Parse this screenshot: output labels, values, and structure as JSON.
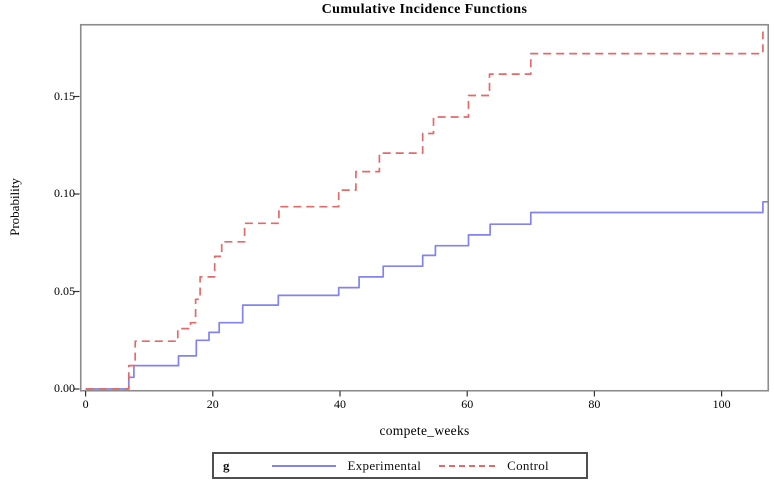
{
  "title": "Cumulative Incidence Functions",
  "axes": {
    "xlabel": "compete_weeks",
    "ylabel": "Probability",
    "x_tick_labels": [
      "0",
      "20",
      "40",
      "60",
      "80",
      "100"
    ],
    "y_tick_labels": [
      "0.00",
      "0.05",
      "0.10",
      "0.15"
    ]
  },
  "legend": {
    "group_label": "g",
    "entries": [
      {
        "label": "Experimental",
        "style": "solid"
      },
      {
        "label": "Control",
        "style": "dashed"
      }
    ]
  },
  "colors": {
    "experimental_line": "#8282f0",
    "control_line": "#e46a6a",
    "frame": "#8c8c8c",
    "tick": "#333333"
  },
  "chart_data": {
    "type": "line",
    "subtype": "step-post",
    "title": "Cumulative Incidence Functions",
    "xlabel": "compete_weeks",
    "ylabel": "Probability",
    "xlim": [
      0,
      107.5
    ],
    "ylim": [
      0,
      0.185
    ],
    "x_ticks": [
      0,
      20,
      40,
      60,
      80,
      100
    ],
    "y_ticks": [
      0.0,
      0.05,
      0.1,
      0.15
    ],
    "grid": false,
    "legend_position": "bottom",
    "series": [
      {
        "name": "Experimental",
        "color": "#8282f0",
        "dash": "solid",
        "steps": [
          [
            6.8,
            0.006
          ],
          [
            7.6,
            0.012
          ],
          [
            14.6,
            0.017
          ],
          [
            17.4,
            0.025
          ],
          [
            19.4,
            0.029
          ],
          [
            21.0,
            0.034
          ],
          [
            24.7,
            0.043
          ],
          [
            30.3,
            0.048
          ],
          [
            39.8,
            0.052
          ],
          [
            43.0,
            0.0575
          ],
          [
            46.8,
            0.063
          ],
          [
            53.0,
            0.0685
          ],
          [
            55.0,
            0.0735
          ],
          [
            60.2,
            0.079
          ],
          [
            63.6,
            0.0845
          ],
          [
            70.0,
            0.0905
          ],
          [
            106.5,
            0.096
          ]
        ]
      },
      {
        "name": "Control",
        "color": "#e46a6a",
        "dash": "dashed",
        "steps": [
          [
            6.8,
            0.012
          ],
          [
            7.8,
            0.0245
          ],
          [
            14.5,
            0.031
          ],
          [
            16.5,
            0.034
          ],
          [
            17.3,
            0.046
          ],
          [
            18.0,
            0.0575
          ],
          [
            20.3,
            0.068
          ],
          [
            21.4,
            0.0755
          ],
          [
            25.0,
            0.085
          ],
          [
            30.4,
            0.0935
          ],
          [
            39.8,
            0.102
          ],
          [
            42.5,
            0.1115
          ],
          [
            46.2,
            0.121
          ],
          [
            53.0,
            0.131
          ],
          [
            54.7,
            0.1395
          ],
          [
            60.2,
            0.1505
          ],
          [
            63.5,
            0.1615
          ],
          [
            70.0,
            0.172
          ],
          [
            106.5,
            0.183
          ]
        ]
      }
    ]
  }
}
